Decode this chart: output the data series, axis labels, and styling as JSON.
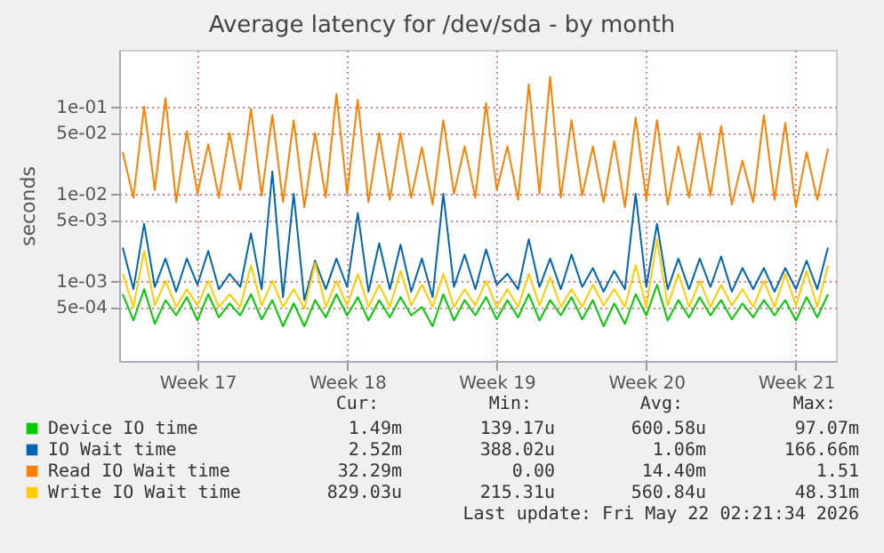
{
  "chart_data": {
    "type": "line",
    "title": "Average latency for /dev/sda - by month",
    "ylabel": "seconds",
    "x": [
      "2026-04-19T00:00",
      "2026-04-19T12:00",
      "2026-04-20T00:00",
      "2026-04-20T12:00",
      "2026-04-21T00:00",
      "2026-04-21T12:00",
      "2026-04-22T00:00",
      "2026-04-22T12:00",
      "2026-04-23T00:00",
      "2026-04-23T12:00",
      "2026-04-24T00:00",
      "2026-04-24T12:00",
      "2026-04-25T00:00",
      "2026-04-25T12:00",
      "2026-04-26T00:00",
      "2026-04-26T12:00",
      "2026-04-27T00:00",
      "2026-04-27T12:00",
      "2026-04-28T00:00",
      "2026-04-28T12:00",
      "2026-04-29T00:00",
      "2026-04-29T12:00",
      "2026-04-30T00:00",
      "2026-04-30T12:00",
      "2026-05-01T00:00",
      "2026-05-01T12:00",
      "2026-05-02T00:00",
      "2026-05-02T12:00",
      "2026-05-03T00:00",
      "2026-05-03T12:00",
      "2026-05-04T00:00",
      "2026-05-04T12:00",
      "2026-05-05T00:00",
      "2026-05-05T12:00",
      "2026-05-06T00:00",
      "2026-05-06T12:00",
      "2026-05-07T00:00",
      "2026-05-07T12:00",
      "2026-05-08T00:00",
      "2026-05-08T12:00",
      "2026-05-09T00:00",
      "2026-05-09T12:00",
      "2026-05-10T00:00",
      "2026-05-10T12:00",
      "2026-05-11T00:00",
      "2026-05-11T12:00",
      "2026-05-12T00:00",
      "2026-05-12T12:00",
      "2026-05-13T00:00",
      "2026-05-13T12:00",
      "2026-05-14T00:00",
      "2026-05-14T12:00",
      "2026-05-15T00:00",
      "2026-05-15T12:00",
      "2026-05-16T00:00",
      "2026-05-16T12:00",
      "2026-05-17T00:00",
      "2026-05-17T12:00",
      "2026-05-18T00:00",
      "2026-05-18T12:00",
      "2026-05-19T00:00",
      "2026-05-19T12:00",
      "2026-05-20T00:00",
      "2026-05-20T12:00",
      "2026-05-21T00:00",
      "2026-05-21T12:00",
      "2026-05-22T00:00"
    ],
    "series": [
      {
        "name": "Device IO time",
        "color": "#00cc00",
        "values": [
          0.0007,
          0.00035,
          0.0008,
          0.00032,
          0.0006,
          0.0004,
          0.00065,
          0.00035,
          0.0007,
          0.00038,
          0.00055,
          0.0004,
          0.0007,
          0.00036,
          0.0006,
          0.0003,
          0.00055,
          0.0003,
          0.0006,
          0.00038,
          0.0007,
          0.0004,
          0.00065,
          0.00035,
          0.0006,
          0.00038,
          0.00065,
          0.0004,
          0.0005,
          0.0003,
          0.0007,
          0.00035,
          0.0006,
          0.0004,
          0.00065,
          0.00036,
          0.0006,
          0.00038,
          0.0007,
          0.00035,
          0.0006,
          0.0004,
          0.00065,
          0.00036,
          0.0006,
          0.0003,
          0.00055,
          0.00032,
          0.0007,
          0.0004,
          0.0009,
          0.00035,
          0.0006,
          0.00038,
          0.00065,
          0.0004,
          0.0006,
          0.00036,
          0.00055,
          0.00038,
          0.0006,
          0.0004,
          0.0006,
          0.00035,
          0.00065,
          0.00038,
          0.0007
        ]
      },
      {
        "name": "IO Wait time",
        "color": "#0066b3",
        "values": [
          0.0024,
          0.0008,
          0.0045,
          0.00085,
          0.0018,
          0.00075,
          0.0018,
          0.0009,
          0.0022,
          0.0008,
          0.0012,
          0.00085,
          0.0035,
          0.0008,
          0.018,
          0.00065,
          0.01,
          0.0006,
          0.0017,
          0.0008,
          0.0018,
          0.00085,
          0.006,
          0.00075,
          0.0027,
          0.0008,
          0.0026,
          0.00075,
          0.0018,
          0.00065,
          0.01,
          0.00085,
          0.002,
          0.0008,
          0.0023,
          0.0009,
          0.0012,
          0.0008,
          0.003,
          0.00085,
          0.0018,
          0.0008,
          0.002,
          0.00085,
          0.0014,
          0.00075,
          0.0013,
          0.0008,
          0.01,
          0.00085,
          0.0045,
          0.0008,
          0.0018,
          0.0008,
          0.0018,
          0.00085,
          0.0019,
          0.00075,
          0.0014,
          0.0008,
          0.0014,
          0.00075,
          0.0014,
          0.0008,
          0.0017,
          0.0008,
          0.0024
        ]
      },
      {
        "name": "Read IO Wait time",
        "color": "#ff8000",
        "values": [
          0.03,
          0.009,
          0.1,
          0.011,
          0.125,
          0.008,
          0.052,
          0.01,
          0.037,
          0.009,
          0.05,
          0.011,
          0.095,
          0.0095,
          0.08,
          0.008,
          0.07,
          0.007,
          0.05,
          0.009,
          0.14,
          0.01,
          0.12,
          0.008,
          0.05,
          0.0085,
          0.05,
          0.009,
          0.034,
          0.0075,
          0.07,
          0.01,
          0.035,
          0.009,
          0.11,
          0.011,
          0.035,
          0.0085,
          0.18,
          0.01,
          0.22,
          0.009,
          0.07,
          0.0095,
          0.035,
          0.008,
          0.04,
          0.007,
          0.075,
          0.0085,
          0.07,
          0.0075,
          0.035,
          0.009,
          0.05,
          0.0095,
          0.06,
          0.0075,
          0.024,
          0.008,
          0.08,
          0.0085,
          0.065,
          0.007,
          0.03,
          0.0085,
          0.033
        ]
      },
      {
        "name": "Write IO Wait time",
        "color": "#ffcc00",
        "values": [
          0.0012,
          0.0005,
          0.0022,
          0.00052,
          0.001,
          0.0005,
          0.0008,
          0.00052,
          0.001,
          0.0005,
          0.0007,
          0.0005,
          0.0015,
          0.00052,
          0.001,
          0.0005,
          0.0008,
          0.00048,
          0.0016,
          0.0005,
          0.001,
          0.00052,
          0.0012,
          0.0005,
          0.0009,
          0.0005,
          0.0013,
          0.00052,
          0.0009,
          0.0005,
          0.0012,
          0.0005,
          0.0008,
          0.00052,
          0.001,
          0.0005,
          0.0008,
          0.0005,
          0.0012,
          0.00052,
          0.0011,
          0.0005,
          0.0008,
          0.0005,
          0.0009,
          0.00052,
          0.0008,
          0.0005,
          0.0015,
          0.0005,
          0.003,
          0.00052,
          0.0012,
          0.0005,
          0.001,
          0.0005,
          0.0009,
          0.00052,
          0.0008,
          0.0005,
          0.001,
          0.0005,
          0.0012,
          0.00052,
          0.0013,
          0.0005,
          0.0015
        ]
      }
    ],
    "xlim": [
      "2026-04-18T20:00",
      "2026-05-22T09:00"
    ],
    "xticks": [
      {
        "value": "2026-04-22T12:00",
        "label": "Week 17"
      },
      {
        "value": "2026-04-29T12:00",
        "label": "Week 18"
      },
      {
        "value": "2026-05-06T12:00",
        "label": "Week 19"
      },
      {
        "value": "2026-05-13T12:00",
        "label": "Week 20"
      },
      {
        "value": "2026-05-20T12:00",
        "label": "Week 21"
      }
    ],
    "ylim": [
      0.00012,
      0.45
    ],
    "yticks": [
      {
        "value": 0.0005,
        "label": "5e-04"
      },
      {
        "value": 0.001,
        "label": "1e-03"
      },
      {
        "value": 0.005,
        "label": "5e-03"
      },
      {
        "value": 0.01,
        "label": "1e-02"
      },
      {
        "value": 0.05,
        "label": "5e-02"
      },
      {
        "value": 0.1,
        "label": "1e-01"
      }
    ],
    "log": "y",
    "grid": true,
    "legend": "bottom",
    "line_style": "solid",
    "marker": "none",
    "annotations": [
      "Cur:",
      "Min:",
      "Avg:",
      "Max:",
      "1.49m",
      "139.17u",
      "600.58u",
      "97.07m",
      "2.52m",
      "388.02u",
      "1.06m",
      "166.66m",
      "32.29m",
      "0.00",
      "14.40m",
      "1.51",
      "829.03u",
      "215.31u",
      "560.84u",
      "48.31m",
      "Last update: Fri May 22 02:21:34 2026"
    ]
  }
}
